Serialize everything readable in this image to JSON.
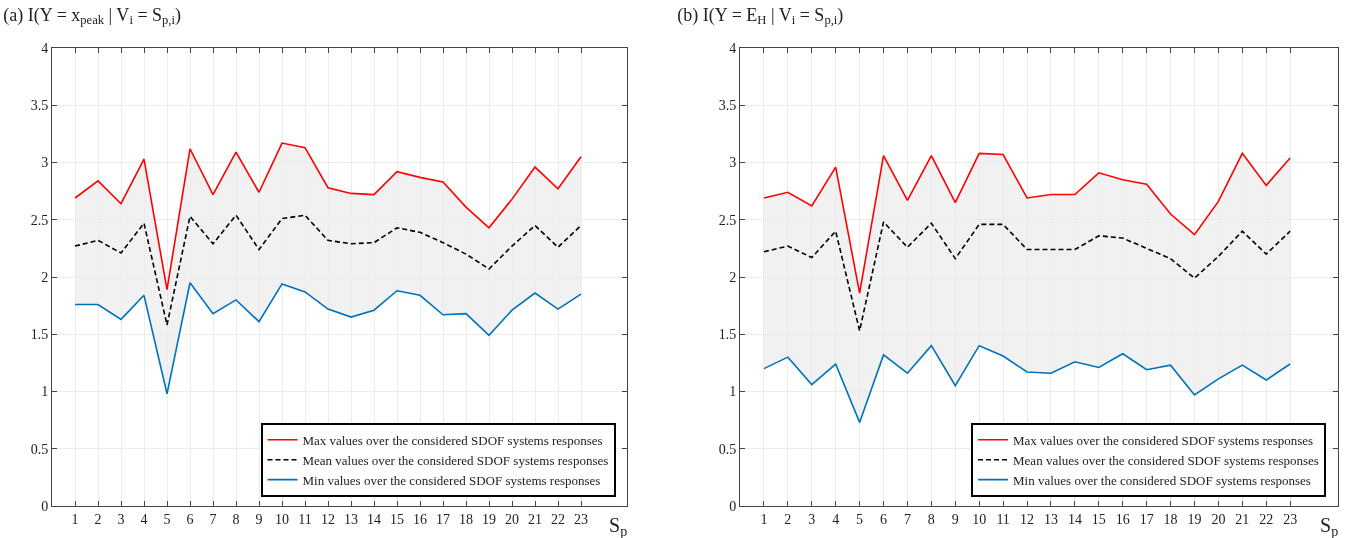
{
  "chart_data": [
    {
      "type": "line",
      "title": "(a) I(Y = x$_{peak}$ | V$_{i}$ = S$_{p,i}$)",
      "xlabel": "S$_{p}$",
      "x": [
        1,
        2,
        3,
        4,
        5,
        6,
        7,
        8,
        9,
        10,
        11,
        12,
        13,
        14,
        15,
        16,
        17,
        18,
        19,
        20,
        21,
        22,
        23
      ],
      "xlim": [
        0,
        25
      ],
      "xticks": [
        1,
        2,
        3,
        4,
        5,
        6,
        7,
        8,
        9,
        10,
        11,
        12,
        13,
        14,
        15,
        16,
        17,
        18,
        19,
        20,
        21,
        22,
        23
      ],
      "ylim": [
        0,
        4
      ],
      "yticks": [
        0,
        0.5,
        1,
        1.5,
        2,
        2.5,
        3,
        3.5,
        4
      ],
      "grid": true,
      "legend": "bottom right",
      "series": [
        {
          "name": "Max values over the considered SDOF systems responses",
          "color": "#ff0000",
          "line_style": "solid",
          "values": [
            2.69,
            2.84,
            2.64,
            3.03,
            1.89,
            3.12,
            2.72,
            3.09,
            2.74,
            3.17,
            3.13,
            2.78,
            2.73,
            2.72,
            2.92,
            2.87,
            2.83,
            2.61,
            2.43,
            2.68,
            2.96,
            2.77,
            3.05
          ]
        },
        {
          "name": "Mean values over the considered SDOF systems responses",
          "color": "#000000",
          "line_style": "dashed",
          "values": [
            2.27,
            2.32,
            2.21,
            2.47,
            1.58,
            2.53,
            2.29,
            2.54,
            2.24,
            2.51,
            2.54,
            2.32,
            2.29,
            2.3,
            2.43,
            2.39,
            2.3,
            2.2,
            2.07,
            2.27,
            2.45,
            2.26,
            2.45
          ],
          "lower": [
            1.76,
            1.76,
            1.63,
            1.84,
            0.98,
            1.95,
            1.68,
            1.8,
            1.61,
            1.94,
            1.87,
            1.72,
            1.65,
            1.71,
            1.88,
            1.84,
            1.67,
            1.68,
            1.49,
            1.71,
            1.86,
            1.72,
            1.85
          ],
          "upper": [
            2.69,
            2.84,
            2.64,
            3.03,
            1.89,
            3.12,
            2.72,
            3.09,
            2.74,
            3.17,
            3.13,
            2.78,
            2.73,
            2.72,
            2.92,
            2.87,
            2.83,
            2.61,
            2.43,
            2.68,
            2.96,
            2.77,
            3.05
          ]
        },
        {
          "name": "Min values over the considered SDOF systems responses",
          "color": "#0072bd",
          "line_style": "solid",
          "values": [
            1.76,
            1.76,
            1.63,
            1.84,
            0.98,
            1.95,
            1.68,
            1.8,
            1.61,
            1.94,
            1.87,
            1.72,
            1.65,
            1.71,
            1.88,
            1.84,
            1.67,
            1.68,
            1.49,
            1.71,
            1.86,
            1.72,
            1.85
          ]
        }
      ]
    },
    {
      "type": "line",
      "title": "(b) I(Y = E$_{H}$ | V$_{i}$ = S$_{p,i}$)",
      "xlabel": "S$_{p}$",
      "x": [
        1,
        2,
        3,
        4,
        5,
        6,
        7,
        8,
        9,
        10,
        11,
        12,
        13,
        14,
        15,
        16,
        17,
        18,
        19,
        20,
        21,
        22,
        23
      ],
      "xlim": [
        0,
        25
      ],
      "xticks": [
        1,
        2,
        3,
        4,
        5,
        6,
        7,
        8,
        9,
        10,
        11,
        12,
        13,
        14,
        15,
        16,
        17,
        18,
        19,
        20,
        21,
        22,
        23
      ],
      "ylim": [
        0,
        4
      ],
      "yticks": [
        0,
        0.5,
        1,
        1.5,
        2,
        2.5,
        3,
        3.5,
        4
      ],
      "grid": true,
      "legend": "bottom right",
      "series": [
        {
          "name": "Max values over the considered SDOF systems responses",
          "color": "#ff0000",
          "line_style": "solid",
          "values": [
            2.69,
            2.74,
            2.62,
            2.96,
            1.86,
            3.06,
            2.67,
            3.06,
            2.65,
            3.08,
            3.07,
            2.69,
            2.72,
            2.72,
            2.91,
            2.85,
            2.81,
            2.55,
            2.37,
            2.66,
            3.08,
            2.8,
            3.04
          ]
        },
        {
          "name": "Mean values over the considered SDOF systems responses",
          "color": "#000000",
          "line_style": "dashed",
          "values": [
            2.22,
            2.27,
            2.17,
            2.4,
            1.53,
            2.48,
            2.26,
            2.47,
            2.16,
            2.46,
            2.46,
            2.24,
            2.24,
            2.24,
            2.36,
            2.34,
            2.25,
            2.16,
            1.99,
            2.18,
            2.4,
            2.2,
            2.4
          ],
          "lower": [
            1.2,
            1.3,
            1.06,
            1.24,
            0.73,
            1.32,
            1.16,
            1.4,
            1.05,
            1.4,
            1.31,
            1.17,
            1.16,
            1.26,
            1.21,
            1.33,
            1.19,
            1.23,
            0.97,
            1.11,
            1.23,
            1.1,
            1.24
          ],
          "upper": [
            2.69,
            2.74,
            2.62,
            2.96,
            1.86,
            3.06,
            2.67,
            3.06,
            2.65,
            3.08,
            3.07,
            2.69,
            2.72,
            2.72,
            2.91,
            2.85,
            2.81,
            2.55,
            2.37,
            2.66,
            3.08,
            2.8,
            3.04
          ]
        },
        {
          "name": "Min values over the considered SDOF systems responses",
          "color": "#0072bd",
          "line_style": "solid",
          "values": [
            1.2,
            1.3,
            1.06,
            1.24,
            0.73,
            1.32,
            1.16,
            1.4,
            1.05,
            1.4,
            1.31,
            1.17,
            1.16,
            1.26,
            1.21,
            1.33,
            1.19,
            1.23,
            0.97,
            1.11,
            1.23,
            1.1,
            1.24
          ]
        }
      ]
    }
  ]
}
